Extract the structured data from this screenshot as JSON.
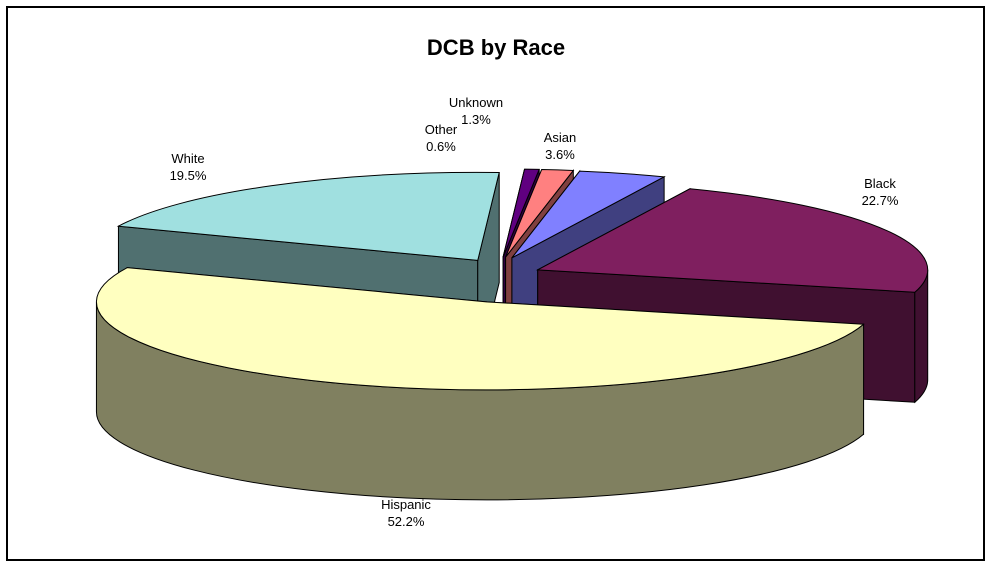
{
  "chart_data": {
    "type": "pie",
    "title": "DCB by Race",
    "slices": [
      {
        "label": "Asian",
        "value": 3.6,
        "display": "3.6%",
        "top": "#8080FF",
        "side": "#404080"
      },
      {
        "label": "Black",
        "value": 22.7,
        "display": "22.7%",
        "top": "#7F1F5F",
        "side": "#401030"
      },
      {
        "label": "Hispanic",
        "value": 52.2,
        "display": "52.2%",
        "top": "#FFFFC0",
        "side": "#808060"
      },
      {
        "label": "White",
        "value": 19.5,
        "display": "19.5%",
        "top": "#A0E0E0",
        "side": "#507070"
      },
      {
        "label": "Other",
        "value": 0.6,
        "display": "0.6%",
        "top": "#600080",
        "side": "#300040"
      },
      {
        "label": "Unknown",
        "value": 1.3,
        "display": "1.3%",
        "top": "#FF8080",
        "side": "#804040"
      }
    ],
    "exploded": true,
    "three_d": true,
    "legend": "none"
  }
}
